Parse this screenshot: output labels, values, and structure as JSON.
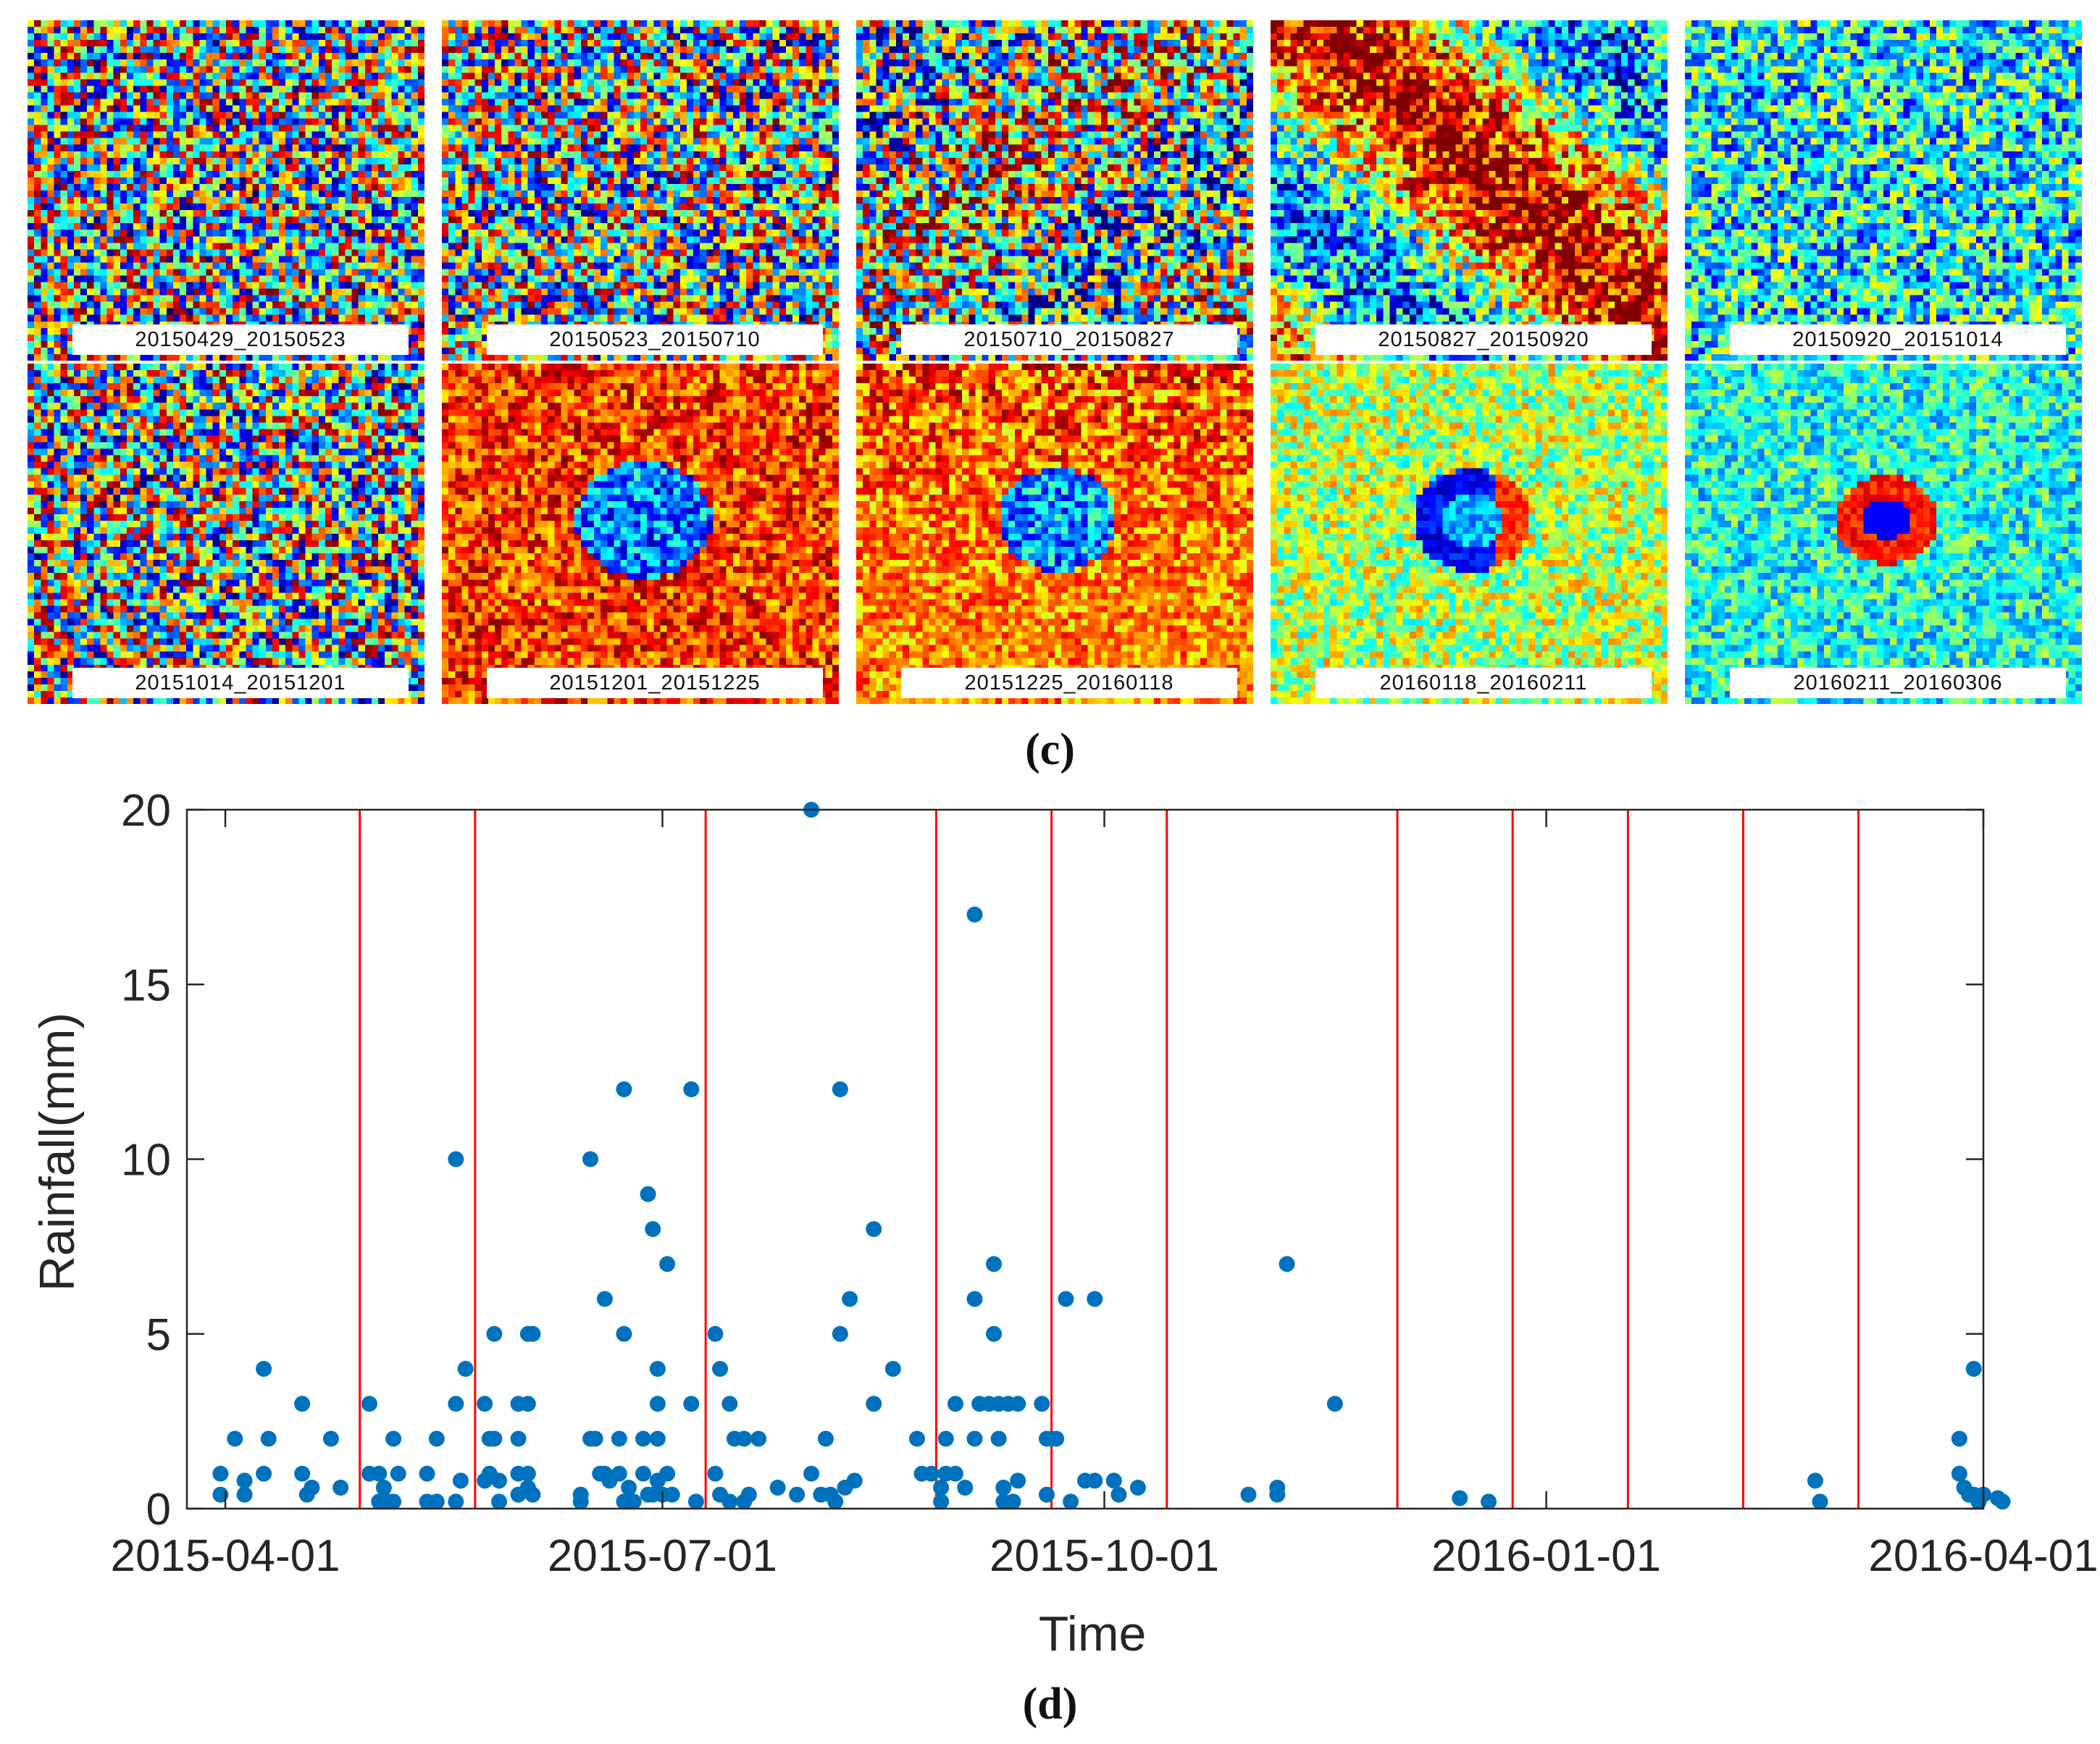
{
  "panel_c": {
    "caption": "(c)",
    "interferograms": [
      {
        "label": "20150429_20150523",
        "pattern": "noise"
      },
      {
        "label": "20150523_20150710",
        "pattern": "noise"
      },
      {
        "label": "20150710_20150827",
        "pattern": "noise-blue"
      },
      {
        "label": "20150827_20150920",
        "pattern": "fringe-red"
      },
      {
        "label": "20150920_20151014",
        "pattern": "cyan-noise"
      },
      {
        "label": "20151014_20151201",
        "pattern": "noise"
      },
      {
        "label": "20151201_20151225",
        "pattern": "red-bowl"
      },
      {
        "label": "20151225_20160118",
        "pattern": "red-bowl-2"
      },
      {
        "label": "20160118_20160211",
        "pattern": "yellow-bowl"
      },
      {
        "label": "20160211_20160306",
        "pattern": "cyan-bowl"
      }
    ]
  },
  "panel_d": {
    "caption": "(d)",
    "chart_data": {
      "type": "scatter",
      "title": "",
      "xlabel": "Time",
      "ylabel": "Rainfall(mm)",
      "xlim": [
        "2015-03-24",
        "2016-04-01"
      ],
      "ylim": [
        0,
        20
      ],
      "x_ticks": [
        "2015-04-01",
        "2015-07-01",
        "2015-10-01",
        "2016-01-01",
        "2016-04-01"
      ],
      "y_ticks": [
        0,
        5,
        10,
        15,
        20
      ],
      "point_color": "#0072bd",
      "vline_color": "#ff0000",
      "acquisition_dates": [
        "2015-04-29",
        "2015-05-23",
        "2015-07-10",
        "2015-08-27",
        "2015-09-20",
        "2015-10-14",
        "2015-12-01",
        "2015-12-25",
        "2016-01-18",
        "2016-02-11",
        "2016-03-06"
      ],
      "series": [
        {
          "name": "Rainfall",
          "points": [
            [
              "2015-03-31",
              1
            ],
            [
              "2015-03-31",
              0.4
            ],
            [
              "2015-04-03",
              2
            ],
            [
              "2015-04-05",
              0.8
            ],
            [
              "2015-04-05",
              0.4
            ],
            [
              "2015-04-09",
              4
            ],
            [
              "2015-04-09",
              1
            ],
            [
              "2015-04-10",
              2
            ],
            [
              "2015-04-17",
              3
            ],
            [
              "2015-04-17",
              1
            ],
            [
              "2015-04-18",
              0.4
            ],
            [
              "2015-04-19",
              0.6
            ],
            [
              "2015-04-23",
              2
            ],
            [
              "2015-04-25",
              0.6
            ],
            [
              "2015-05-01",
              3
            ],
            [
              "2015-05-01",
              1
            ],
            [
              "2015-05-03",
              1
            ],
            [
              "2015-05-03",
              0.2
            ],
            [
              "2015-05-04",
              0.6
            ],
            [
              "2015-05-05",
              0.2
            ],
            [
              "2015-05-06",
              2
            ],
            [
              "2015-05-06",
              0.2
            ],
            [
              "2015-05-07",
              1
            ],
            [
              "2015-05-13",
              1
            ],
            [
              "2015-05-13",
              0.2
            ],
            [
              "2015-05-15",
              2
            ],
            [
              "2015-05-15",
              0.2
            ],
            [
              "2015-05-19",
              10
            ],
            [
              "2015-05-19",
              3
            ],
            [
              "2015-05-19",
              0.2
            ],
            [
              "2015-05-21",
              4
            ],
            [
              "2015-05-20",
              0.8
            ],
            [
              "2015-05-25",
              3
            ],
            [
              "2015-05-25",
              0.8
            ],
            [
              "2015-05-26",
              2
            ],
            [
              "2015-05-26",
              1
            ],
            [
              "2015-05-27",
              5
            ],
            [
              "2015-05-27",
              2
            ],
            [
              "2015-05-28",
              0.2
            ],
            [
              "2015-05-28",
              0.8
            ],
            [
              "2015-06-01",
              3
            ],
            [
              "2015-06-01",
              2
            ],
            [
              "2015-06-01",
              1
            ],
            [
              "2015-06-01",
              0.4
            ],
            [
              "2015-06-03",
              5
            ],
            [
              "2015-06-03",
              3
            ],
            [
              "2015-06-03",
              1
            ],
            [
              "2015-06-03",
              0.6
            ],
            [
              "2015-06-04",
              5
            ],
            [
              "2015-06-04",
              0.4
            ],
            [
              "2015-06-14",
              0.4
            ],
            [
              "2015-06-14",
              0.2
            ],
            [
              "2015-06-16",
              10
            ],
            [
              "2015-06-16",
              2
            ],
            [
              "2015-06-17",
              2
            ],
            [
              "2015-06-18",
              1
            ],
            [
              "2015-06-19",
              6
            ],
            [
              "2015-06-19",
              1
            ],
            [
              "2015-06-20",
              0.8
            ],
            [
              "2015-06-22",
              2
            ],
            [
              "2015-06-22",
              1
            ],
            [
              "2015-06-23",
              0.2
            ],
            [
              "2015-06-23",
              12
            ],
            [
              "2015-06-23",
              5
            ],
            [
              "2015-06-24",
              0.6
            ],
            [
              "2015-06-25",
              0.2
            ],
            [
              "2015-06-27",
              2
            ],
            [
              "2015-06-27",
              1
            ],
            [
              "2015-06-28",
              9
            ],
            [
              "2015-06-28",
              0.4
            ],
            [
              "2015-06-29",
              8
            ],
            [
              "2015-06-29",
              0.4
            ],
            [
              "2015-06-30",
              4
            ],
            [
              "2015-06-30",
              3
            ],
            [
              "2015-06-30",
              2
            ],
            [
              "2015-06-30",
              0.8
            ],
            [
              "2015-07-01",
              0.4
            ],
            [
              "2015-07-02",
              7
            ],
            [
              "2015-07-02",
              1
            ],
            [
              "2015-07-03",
              0.4
            ],
            [
              "2015-07-07",
              12
            ],
            [
              "2015-07-07",
              3
            ],
            [
              "2015-07-08",
              0.2
            ],
            [
              "2015-07-12",
              5
            ],
            [
              "2015-07-12",
              1
            ],
            [
              "2015-07-13",
              4
            ],
            [
              "2015-07-13",
              0.4
            ],
            [
              "2015-07-15",
              3
            ],
            [
              "2015-07-15",
              0.2
            ],
            [
              "2015-07-16",
              2
            ],
            [
              "2015-07-18",
              2
            ],
            [
              "2015-07-18",
              0.2
            ],
            [
              "2015-07-19",
              0.4
            ],
            [
              "2015-07-21",
              2
            ],
            [
              "2015-07-25",
              0.6
            ],
            [
              "2015-07-29",
              0.4
            ],
            [
              "2015-08-01",
              20
            ],
            [
              "2015-08-01",
              1
            ],
            [
              "2015-08-03",
              0.4
            ],
            [
              "2015-08-04",
              2
            ],
            [
              "2015-08-05",
              0.4
            ],
            [
              "2015-08-06",
              0.2
            ],
            [
              "2015-08-07",
              12
            ],
            [
              "2015-08-07",
              5
            ],
            [
              "2015-08-08",
              0.6
            ],
            [
              "2015-08-09",
              6
            ],
            [
              "2015-08-10",
              0.8
            ],
            [
              "2015-08-14",
              8
            ],
            [
              "2015-08-14",
              3
            ],
            [
              "2015-08-18",
              4
            ],
            [
              "2015-08-23",
              2
            ],
            [
              "2015-08-24",
              1
            ],
            [
              "2015-08-26",
              1
            ],
            [
              "2015-08-28",
              0.2
            ],
            [
              "2015-08-28",
              0.6
            ],
            [
              "2015-08-29",
              2
            ],
            [
              "2015-08-29",
              1
            ],
            [
              "2015-08-31",
              3
            ],
            [
              "2015-08-31",
              1
            ],
            [
              "2015-09-02",
              0.6
            ],
            [
              "2015-09-04",
              17
            ],
            [
              "2015-09-04",
              6
            ],
            [
              "2015-09-04",
              2
            ],
            [
              "2015-09-05",
              3
            ],
            [
              "2015-09-07",
              3
            ],
            [
              "2015-09-08",
              7
            ],
            [
              "2015-09-08",
              5
            ],
            [
              "2015-09-09",
              3
            ],
            [
              "2015-09-09",
              2
            ],
            [
              "2015-09-10",
              0.2
            ],
            [
              "2015-09-10",
              0.6
            ],
            [
              "2015-09-11",
              3
            ],
            [
              "2015-09-12",
              0.2
            ],
            [
              "2015-09-13",
              0.8
            ],
            [
              "2015-09-13",
              3
            ],
            [
              "2015-09-18",
              3
            ],
            [
              "2015-09-19",
              2
            ],
            [
              "2015-09-19",
              0.4
            ],
            [
              "2015-09-20",
              2
            ],
            [
              "2015-09-21",
              2
            ],
            [
              "2015-09-23",
              6
            ],
            [
              "2015-09-24",
              0.2
            ],
            [
              "2015-09-27",
              0.8
            ],
            [
              "2015-09-29",
              6
            ],
            [
              "2015-09-29",
              0.8
            ],
            [
              "2015-10-03",
              0.8
            ],
            [
              "2015-10-04",
              0.4
            ],
            [
              "2015-10-08",
              0.6
            ],
            [
              "2015-10-31",
              0.4
            ],
            [
              "2015-11-06",
              0.6
            ],
            [
              "2015-11-06",
              0.4
            ],
            [
              "2015-11-08",
              7
            ],
            [
              "2015-11-18",
              3
            ],
            [
              "2015-12-14",
              0.3
            ],
            [
              "2015-12-20",
              0.2
            ],
            [
              "2016-02-26",
              0.8
            ],
            [
              "2016-02-27",
              0.2
            ],
            [
              "2016-03-27",
              2
            ],
            [
              "2016-03-27",
              1
            ],
            [
              "2016-03-28",
              0.6
            ],
            [
              "2016-03-29",
              0.4
            ],
            [
              "2016-03-30",
              4
            ],
            [
              "2016-03-30",
              0.4
            ],
            [
              "2016-03-31",
              0.2
            ],
            [
              "2016-04-01",
              0.4
            ],
            [
              "2016-04-04",
              0.3
            ],
            [
              "2016-04-05",
              0.2
            ]
          ]
        }
      ]
    }
  }
}
